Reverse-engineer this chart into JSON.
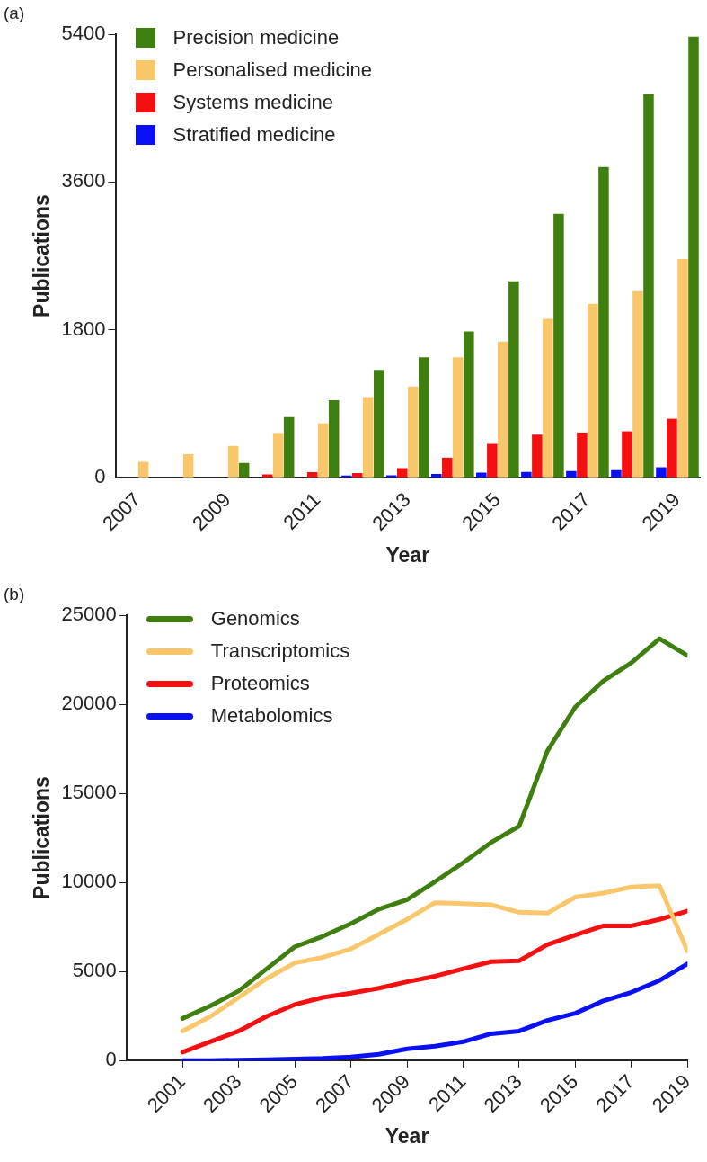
{
  "chart_data": [
    {
      "type": "bar",
      "annotations": [
        "(a)"
      ],
      "xlabel": "Year",
      "ylabel": "Publications",
      "categories": [
        "2007",
        null,
        "2009",
        null,
        "2011",
        null,
        "2013",
        null,
        "2015",
        null,
        "2017",
        null,
        "2019"
      ],
      "series": [
        {
          "name": "Precision medicine",
          "color": "#3f7f0f",
          "values": [
            0,
            0,
            178,
            738,
            942,
            1313,
            1466,
            1782,
            2392,
            3212,
            3782,
            4673,
            5370
          ]
        },
        {
          "name": "Personalised medicine",
          "color": "#f9c66a",
          "values": [
            193,
            285,
            387,
            545,
            662,
            982,
            1110,
            1466,
            1659,
            1934,
            2117,
            2270,
            2662
          ]
        },
        {
          "name": "Systems medicine",
          "color": "#f41010",
          "values": [
            0,
            0,
            0,
            41,
            66,
            56,
            117,
            244,
            412,
            524,
            550,
            565,
            718
          ]
        },
        {
          "name": "Stratified medicine",
          "color": "#0a10f4",
          "values": [
            0,
            0,
            0,
            0,
            0,
            25,
            30,
            46,
            61,
            71,
            81,
            92,
            127
          ]
        }
      ],
      "ylim": [
        0,
        5400
      ],
      "yticks": [
        0,
        1800,
        3600,
        5400
      ],
      "grid": false,
      "legend": "top left"
    },
    {
      "type": "line",
      "annotations": [
        "(b)"
      ],
      "xlabel": "Year",
      "ylabel": "Publications",
      "x": [
        2001,
        2002,
        2003,
        2004,
        2005,
        2006,
        2007,
        2008,
        2009,
        2010,
        2011,
        2012,
        2013,
        2014,
        2015,
        2016,
        2017,
        2018,
        2019
      ],
      "series": [
        {
          "name": "Genomics",
          "color": "#3f7f0f",
          "values": [
            2360,
            3070,
            3900,
            5150,
            6380,
            6970,
            7680,
            8500,
            9030,
            10040,
            11100,
            12240,
            13160,
            17370,
            19850,
            21310,
            22330,
            23680,
            22730
          ]
        },
        {
          "name": "Transcriptomics",
          "color": "#f9c66a",
          "values": [
            1650,
            2480,
            3540,
            4600,
            5480,
            5790,
            6260,
            7090,
            7920,
            8860,
            8810,
            8740,
            8320,
            8270,
            9170,
            9400,
            9740,
            9810,
            6140
          ]
        },
        {
          "name": "Proteomics",
          "color": "#f41010",
          "values": [
            470,
            1060,
            1650,
            2480,
            3140,
            3540,
            3780,
            4060,
            4420,
            4730,
            5150,
            5550,
            5600,
            6500,
            7040,
            7560,
            7560,
            7920,
            8390
          ]
        },
        {
          "name": "Metabolomics",
          "color": "#0a10f4",
          "values": [
            0,
            0,
            20,
            50,
            80,
            120,
            200,
            350,
            650,
            800,
            1050,
            1500,
            1650,
            2250,
            2650,
            3350,
            3830,
            4490,
            5430
          ]
        }
      ],
      "xlim": [
        1999,
        2019
      ],
      "xticks": [
        2001,
        2003,
        2005,
        2007,
        2009,
        2011,
        2013,
        2015,
        2017,
        2019
      ],
      "ylim": [
        0,
        25000
      ],
      "yticks": [
        0,
        5000,
        10000,
        15000,
        20000,
        25000
      ],
      "grid": false,
      "legend": "top left",
      "marker": "none",
      "line_style": "solid"
    }
  ]
}
